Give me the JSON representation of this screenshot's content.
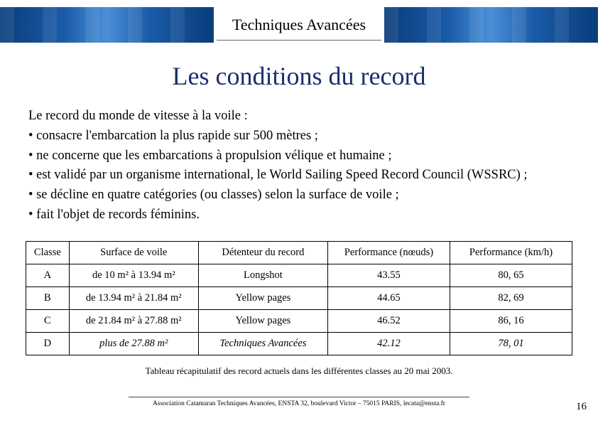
{
  "header": {
    "title": "Techniques Avancées"
  },
  "title": "Les conditions du record",
  "intro": "Le record du monde de vitesse à la voile :",
  "bullets": [
    "consacre l'embarcation la plus rapide sur 500 mètres ;",
    "ne concerne que les embarcations à propulsion vélique et humaine ;",
    "est validé par un organisme international, le World Sailing Speed Record Council (WSSRC) ;",
    "se décline en quatre catégories (ou classes) selon la surface de voile ;",
    "fait l'objet de records féminins."
  ],
  "table": {
    "columns": [
      "Classe",
      "Surface de voile",
      "Détenteur du record",
      "Performance (nœuds)",
      "Performance (km/h)"
    ],
    "col_widths": [
      "60px",
      "180px",
      "180px",
      "170px",
      "170px"
    ],
    "rows": [
      {
        "classe": "A",
        "surface": "de 10 m² à 13.94 m²",
        "detenteur": "Longshot",
        "noeuds": "43.55",
        "kmh": "80, 65",
        "emph": false
      },
      {
        "classe": "B",
        "surface": "de 13.94 m² à 21.84 m²",
        "detenteur": "Yellow pages",
        "noeuds": "44.65",
        "kmh": "82, 69",
        "emph": false
      },
      {
        "classe": "C",
        "surface": "de 21.84 m² à 27.88 m²",
        "detenteur": "Yellow pages",
        "noeuds": "46.52",
        "kmh": "86, 16",
        "emph": false
      },
      {
        "classe": "D",
        "surface": "plus de 27.88 m²",
        "detenteur": "Techniques Avancées",
        "noeuds": "42.12",
        "kmh": "78, 01",
        "emph": true
      }
    ]
  },
  "caption": "Tableau récapitulatif des record actuels dans les différentes classes au 20 mai 2003.",
  "footer": "Association Catamaran Techniques Avancées, ENSTA 32, boulevard Victor – 75015 PARIS, lecata@ensta.fr",
  "page_number": "16",
  "colors": {
    "title_color": "#1a2e6e",
    "banner_gradient": [
      "#0a3d7a",
      "#1a5ba8",
      "#4a8fd8"
    ]
  }
}
